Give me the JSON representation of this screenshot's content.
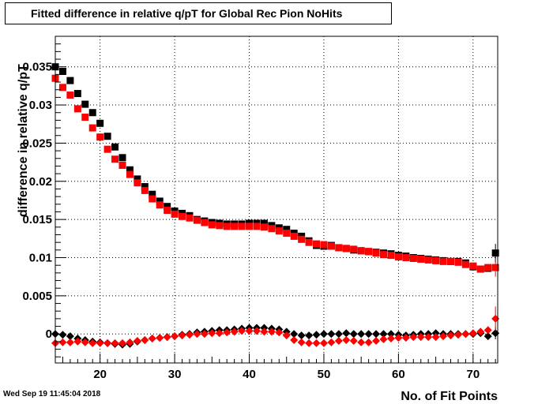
{
  "chart_data": {
    "type": "scatter",
    "title": "Fitted difference in relative q/pT for Global Rec Pion NoHits",
    "xlabel": "No. of Fit Points",
    "ylabel": "difference in relative q/pT",
    "xlim": [
      14,
      73.3
    ],
    "ylim": [
      -0.0038,
      0.039
    ],
    "xticks": [
      20,
      30,
      40,
      50,
      60,
      70
    ],
    "yticks": [
      0,
      0.005,
      0.01,
      0.015,
      0.02,
      0.025,
      0.03,
      0.035
    ],
    "ytick_labels": [
      "0",
      "0.005",
      "0.01",
      "0.015",
      "0.02",
      "0.025",
      "0.03",
      "0.035"
    ],
    "grid": true,
    "series": [
      {
        "marker": "square",
        "color": "#000000",
        "x": [
          14,
          15,
          16,
          17,
          18,
          19,
          20,
          21,
          22,
          23,
          24,
          25,
          26,
          27,
          28,
          29,
          30,
          31,
          32,
          33,
          34,
          35,
          36,
          37,
          38,
          39,
          40,
          41,
          42,
          43,
          44,
          45,
          46,
          47,
          48,
          49,
          50,
          51,
          52,
          53,
          54,
          55,
          56,
          57,
          58,
          59,
          60,
          61,
          62,
          63,
          64,
          65,
          66,
          67,
          68,
          69,
          70,
          71,
          72,
          73
        ],
        "y": [
          0.035,
          0.0344,
          0.0332,
          0.0315,
          0.0301,
          0.029,
          0.0276,
          0.0259,
          0.0245,
          0.0231,
          0.0215,
          0.0203,
          0.0193,
          0.0183,
          0.0174,
          0.0167,
          0.0161,
          0.0158,
          0.0155,
          0.015,
          0.0148,
          0.0146,
          0.0145,
          0.0144,
          0.0144,
          0.0144,
          0.0145,
          0.0145,
          0.0145,
          0.0142,
          0.0139,
          0.0137,
          0.0132,
          0.0128,
          0.0122,
          0.0116,
          0.0115,
          0.0116,
          0.0113,
          0.0112,
          0.011,
          0.0109,
          0.0108,
          0.0107,
          0.0106,
          0.0105,
          0.0103,
          0.0102,
          0.01,
          0.0099,
          0.0098,
          0.0097,
          0.0096,
          0.0095,
          0.0095,
          0.0093,
          0.0088,
          0.0085,
          0.0086,
          0.0106
        ],
        "yerr": [
          0,
          0,
          0,
          0,
          0,
          0,
          0,
          0,
          0,
          0,
          0,
          0,
          0,
          0,
          0,
          0,
          0,
          0,
          0,
          0,
          0,
          0,
          0,
          0,
          0,
          0,
          0,
          0,
          0,
          0,
          0,
          0,
          0,
          0,
          0,
          0,
          0,
          0,
          0,
          0,
          0,
          0,
          0,
          0,
          0,
          0,
          0,
          0,
          0,
          0,
          0,
          0,
          0,
          0,
          0,
          0,
          0,
          0,
          0,
          0.0012
        ]
      },
      {
        "marker": "square",
        "color": "#ff0000",
        "x": [
          14,
          15,
          16,
          17,
          18,
          19,
          20,
          21,
          22,
          23,
          24,
          25,
          26,
          27,
          28,
          29,
          30,
          31,
          32,
          33,
          34,
          35,
          36,
          37,
          38,
          39,
          40,
          41,
          42,
          43,
          44,
          45,
          46,
          47,
          48,
          49,
          50,
          51,
          52,
          53,
          54,
          55,
          56,
          57,
          58,
          59,
          60,
          61,
          62,
          63,
          64,
          65,
          66,
          67,
          68,
          69,
          70,
          71,
          72,
          73
        ],
        "y": [
          0.0335,
          0.0323,
          0.0313,
          0.0295,
          0.0284,
          0.027,
          0.0258,
          0.0242,
          0.0229,
          0.0221,
          0.0209,
          0.0198,
          0.0188,
          0.0177,
          0.0169,
          0.0162,
          0.0157,
          0.0154,
          0.0152,
          0.0149,
          0.0146,
          0.0143,
          0.0142,
          0.0141,
          0.0141,
          0.0141,
          0.0141,
          0.0141,
          0.014,
          0.0138,
          0.0135,
          0.0132,
          0.0128,
          0.0124,
          0.012,
          0.0118,
          0.0117,
          0.0115,
          0.0113,
          0.0112,
          0.0111,
          0.0109,
          0.0108,
          0.0106,
          0.0104,
          0.0103,
          0.0101,
          0.01,
          0.0099,
          0.0098,
          0.0097,
          0.0096,
          0.0095,
          0.0095,
          0.0094,
          0.0091,
          0.0089,
          0.0085,
          0.0087,
          0.0087
        ],
        "yerr": [
          0,
          0,
          0,
          0,
          0,
          0,
          0,
          0,
          0,
          0,
          0,
          0,
          0,
          0,
          0,
          0,
          0,
          0,
          0,
          0,
          0,
          0,
          0,
          0,
          0,
          0,
          0,
          0,
          0,
          0,
          0,
          0,
          0,
          0,
          0,
          0,
          0,
          0,
          0,
          0,
          0,
          0,
          0,
          0,
          0,
          0,
          0,
          0,
          0,
          0,
          0,
          0,
          0,
          0,
          0,
          0,
          0,
          0,
          0,
          0.0012
        ]
      },
      {
        "marker": "diamond",
        "color": "#000000",
        "x": [
          14,
          15,
          16,
          17,
          18,
          19,
          20,
          21,
          22,
          23,
          24,
          25,
          26,
          27,
          28,
          29,
          30,
          31,
          32,
          33,
          34,
          35,
          36,
          37,
          38,
          39,
          40,
          41,
          42,
          43,
          44,
          45,
          46,
          47,
          48,
          49,
          50,
          51,
          52,
          53,
          54,
          55,
          56,
          57,
          58,
          59,
          60,
          61,
          62,
          63,
          64,
          65,
          66,
          67,
          68,
          69,
          70,
          71,
          72,
          73
        ],
        "y": [
          0.0,
          -0.0001,
          -0.0003,
          -0.0006,
          -0.0008,
          -0.001,
          -0.0011,
          -0.0012,
          -0.0013,
          -0.0014,
          -0.0013,
          -0.001,
          -0.0008,
          -0.0006,
          -0.0005,
          -0.0004,
          -0.0003,
          -0.0001,
          0.0,
          0.0002,
          0.0003,
          0.0004,
          0.0005,
          0.0005,
          0.0006,
          0.0007,
          0.0008,
          0.0008,
          0.0008,
          0.0007,
          0.0006,
          0.0003,
          0.0,
          -0.0002,
          -0.0002,
          -0.0001,
          0.0,
          0.0,
          0.0,
          0.0001,
          0.0,
          0.0,
          0.0,
          0.0,
          0.0,
          0.0,
          -0.0001,
          -0.0002,
          -0.0001,
          0.0,
          0.0,
          0.0001,
          0.0,
          0.0,
          0.0,
          0.0,
          0.0,
          0.0001,
          -0.0003,
          0.0001
        ],
        "yerr": [
          0,
          0,
          0,
          0,
          0,
          0,
          0,
          0,
          0,
          0,
          0,
          0,
          0,
          0,
          0,
          0,
          0,
          0,
          0,
          0,
          0,
          0,
          0,
          0,
          0,
          0,
          0,
          0,
          0,
          0,
          0,
          0,
          0,
          0,
          0,
          0,
          0,
          0,
          0,
          0,
          0,
          0,
          0,
          0,
          0,
          0,
          0,
          0,
          0,
          0,
          0,
          0,
          0,
          0,
          0,
          0,
          0,
          0,
          0,
          0.0008
        ]
      },
      {
        "marker": "diamond",
        "color": "#ff0000",
        "x": [
          14,
          15,
          16,
          17,
          18,
          19,
          20,
          21,
          22,
          23,
          24,
          25,
          26,
          27,
          28,
          29,
          30,
          31,
          32,
          33,
          34,
          35,
          36,
          37,
          38,
          39,
          40,
          41,
          42,
          43,
          44,
          45,
          46,
          47,
          48,
          49,
          50,
          51,
          52,
          53,
          54,
          55,
          56,
          57,
          58,
          59,
          60,
          61,
          62,
          63,
          64,
          65,
          66,
          67,
          68,
          69,
          70,
          71,
          72,
          73
        ],
        "y": [
          -0.0012,
          -0.0011,
          -0.0011,
          -0.001,
          -0.0011,
          -0.0012,
          -0.0012,
          -0.0012,
          -0.0012,
          -0.0012,
          -0.0011,
          -0.0009,
          -0.0008,
          -0.0006,
          -0.0005,
          -0.0004,
          -0.0003,
          -0.0002,
          -0.0001,
          0.0,
          0.0,
          0.0001,
          0.0001,
          0.0002,
          0.0003,
          0.0004,
          0.0004,
          0.0004,
          0.0003,
          0.0003,
          0.0002,
          -0.0002,
          -0.0008,
          -0.0011,
          -0.0012,
          -0.0012,
          -0.0012,
          -0.0011,
          -0.0009,
          -0.0008,
          -0.0009,
          -0.0011,
          -0.0011,
          -0.0009,
          -0.0007,
          -0.0006,
          -0.0005,
          -0.0005,
          -0.0004,
          -0.0004,
          -0.0004,
          -0.0004,
          -0.0003,
          -0.0002,
          -0.0001,
          0.0,
          0.0001,
          0.0003,
          0.0005,
          0.002
        ],
        "yerr": [
          0,
          0,
          0,
          0,
          0,
          0,
          0,
          0,
          0,
          0,
          0,
          0,
          0,
          0,
          0,
          0,
          0,
          0,
          0,
          0,
          0,
          0,
          0,
          0,
          0,
          0,
          0,
          0,
          0,
          0,
          0,
          0,
          0,
          0,
          0,
          0,
          0,
          0,
          0,
          0,
          0,
          0,
          0,
          0,
          0,
          0,
          0,
          0,
          0,
          0,
          0,
          0,
          0,
          0,
          0,
          0,
          0,
          0,
          0,
          0.0016
        ]
      }
    ]
  },
  "timestamp": "Wed Sep 19 11:45:04 2018"
}
